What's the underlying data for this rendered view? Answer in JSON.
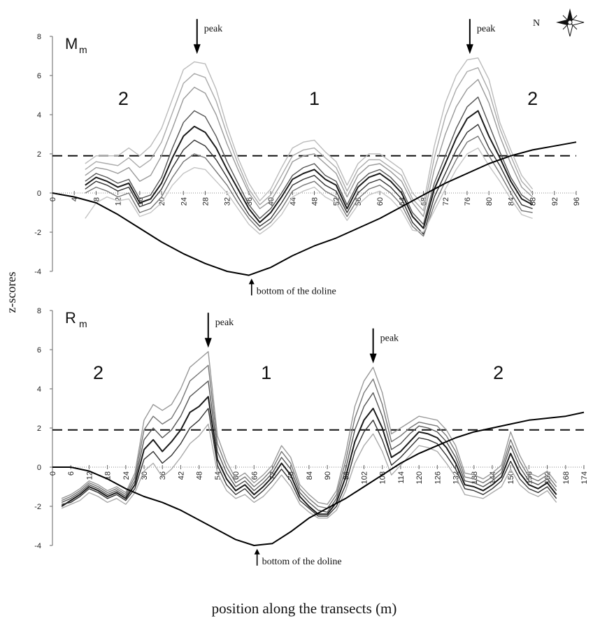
{
  "figure": {
    "ylabel": "z-scores",
    "xlabel": "position along the transects (m)",
    "compass_label": "N"
  },
  "chart_data": [
    {
      "type": "line",
      "panel_label": "M",
      "panel_label_sub": "m",
      "ylim": [
        -4,
        8
      ],
      "yticks": [
        -4,
        -2,
        0,
        2,
        4,
        6,
        8
      ],
      "xlim": [
        0,
        96
      ],
      "xticks": [
        0,
        4,
        8,
        12,
        16,
        20,
        24,
        28,
        32,
        36,
        40,
        44,
        48,
        52,
        56,
        60,
        64,
        68,
        72,
        76,
        80,
        84,
        88,
        92,
        96
      ],
      "threshold": 1.9,
      "zone_labels": [
        {
          "text": "2",
          "x": 13,
          "y": 4.5
        },
        {
          "text": "1",
          "x": 48,
          "y": 4.5
        },
        {
          "text": "2",
          "x": 88,
          "y": 4.5
        }
      ],
      "annotations": [
        {
          "text": "peak",
          "x": 26.5,
          "y": 7.1,
          "arrow": "down"
        },
        {
          "text": "peak",
          "x": 76.5,
          "y": 7.1,
          "arrow": "down"
        },
        {
          "text": "bottom of the doline",
          "x": 36.5,
          "y": -4.3,
          "arrow": "up"
        }
      ],
      "doline_profile": {
        "x": [
          0,
          4,
          8,
          12,
          16,
          20,
          24,
          28,
          32,
          36,
          40,
          44,
          48,
          52,
          56,
          60,
          64,
          68,
          72,
          76,
          80,
          84,
          88,
          92,
          96
        ],
        "y": [
          0,
          -0.2,
          -0.5,
          -1.1,
          -1.8,
          -2.5,
          -3.1,
          -3.6,
          -4.0,
          -4.2,
          -3.8,
          -3.2,
          -2.7,
          -2.3,
          -1.8,
          -1.3,
          -0.7,
          -0.1,
          0.5,
          1.0,
          1.5,
          1.9,
          2.2,
          2.4,
          2.6
        ]
      },
      "series_x": [
        6,
        8,
        10,
        12,
        14,
        16,
        18,
        20,
        22,
        24,
        26,
        28,
        30,
        32,
        34,
        36,
        38,
        40,
        42,
        44,
        46,
        48,
        50,
        52,
        54,
        56,
        58,
        60,
        62,
        64,
        66,
        68,
        70,
        72,
        74,
        76,
        78,
        80,
        82,
        84,
        86,
        88
      ],
      "series": [
        {
          "values": [
            0.4,
            0.8,
            0.6,
            0.3,
            0.5,
            -0.5,
            -0.3,
            0.5,
            1.8,
            2.9,
            3.4,
            3.1,
            2.3,
            1.2,
            0.2,
            -0.8,
            -1.5,
            -1.0,
            -0.2,
            0.7,
            1.0,
            1.2,
            0.7,
            0.4,
            -0.8,
            0.3,
            0.8,
            1.0,
            0.6,
            0.0,
            -1.2,
            -1.8,
            0.2,
            1.5,
            2.8,
            3.8,
            4.2,
            2.9,
            1.8,
            0.6,
            -0.3,
            -0.6
          ]
        },
        {
          "values": [
            0.2,
            0.6,
            0.4,
            0.1,
            0.3,
            -0.7,
            -0.5,
            0.2,
            1.3,
            2.2,
            2.7,
            2.4,
            1.7,
            0.8,
            -0.2,
            -1.1,
            -1.7,
            -1.3,
            -0.5,
            0.4,
            0.7,
            0.9,
            0.4,
            0.1,
            -1.0,
            0.0,
            0.5,
            0.7,
            0.3,
            -0.3,
            -1.5,
            -2.1,
            -0.2,
            1.0,
            2.2,
            3.1,
            3.5,
            2.3,
            1.4,
            0.3,
            -0.6,
            -0.8
          ]
        },
        {
          "values": [
            0.6,
            1.0,
            0.8,
            0.5,
            0.7,
            -0.3,
            -0.1,
            0.8,
            2.3,
            3.6,
            4.2,
            3.9,
            2.9,
            1.6,
            0.5,
            -0.6,
            -1.3,
            -0.8,
            0.0,
            0.9,
            1.3,
            1.5,
            0.9,
            0.6,
            -0.6,
            0.5,
            1.0,
            1.2,
            0.8,
            0.2,
            -1.0,
            -1.6,
            0.5,
            1.9,
            3.3,
            4.4,
            4.9,
            3.5,
            2.1,
            0.8,
            -0.1,
            -0.5
          ]
        },
        {
          "values": [
            0.0,
            0.3,
            0.1,
            -0.2,
            0.0,
            -1.0,
            -0.8,
            -0.2,
            0.8,
            1.6,
            2.0,
            1.8,
            1.1,
            0.4,
            -0.5,
            -1.3,
            -1.9,
            -1.5,
            -0.8,
            0.1,
            0.4,
            0.6,
            0.1,
            -0.2,
            -1.2,
            -0.3,
            0.2,
            0.4,
            0.0,
            -0.6,
            -1.7,
            -2.2,
            -0.6,
            0.6,
            1.7,
            2.6,
            2.9,
            1.9,
            1.0,
            0.0,
            -0.9,
            -1.0
          ]
        },
        {
          "values": [
            0.9,
            1.3,
            1.2,
            1.0,
            1.3,
            0.6,
            0.9,
            1.9,
            3.3,
            4.8,
            5.4,
            5.1,
            4.0,
            2.5,
            1.2,
            0.0,
            -0.8,
            -0.4,
            0.5,
            1.6,
            1.9,
            2.0,
            1.5,
            1.0,
            -0.2,
            0.9,
            1.4,
            1.5,
            1.1,
            0.6,
            -0.5,
            -1.2,
            1.2,
            3.0,
            4.4,
            5.3,
            5.8,
            4.6,
            2.9,
            1.5,
            0.3,
            -0.2
          ]
        },
        {
          "values": [
            1.2,
            1.6,
            1.5,
            1.4,
            1.8,
            1.3,
            1.7,
            2.6,
            4.1,
            5.6,
            6.1,
            5.9,
            4.7,
            3.0,
            1.5,
            0.2,
            -0.6,
            -0.1,
            0.9,
            1.9,
            2.2,
            2.3,
            1.8,
            1.3,
            0.1,
            1.2,
            1.7,
            1.7,
            1.3,
            0.9,
            -0.3,
            -0.9,
            1.8,
            3.9,
            5.3,
            6.2,
            6.4,
            5.2,
            3.3,
            1.9,
            0.6,
            0.0
          ]
        },
        {
          "values": [
            1.5,
            1.9,
            1.9,
            1.9,
            2.3,
            1.9,
            2.4,
            3.3,
            4.8,
            6.3,
            6.7,
            6.6,
            5.3,
            3.4,
            1.8,
            0.5,
            -0.4,
            0.2,
            1.3,
            2.3,
            2.6,
            2.7,
            2.1,
            1.6,
            0.4,
            1.5,
            2.0,
            2.0,
            1.6,
            1.2,
            0.0,
            -0.6,
            2.4,
            4.6,
            6.0,
            6.8,
            6.9,
            5.8,
            3.6,
            2.2,
            0.9,
            0.2
          ]
        },
        {
          "values": [
            -1.3,
            -0.5,
            -0.2,
            -0.4,
            -0.3,
            -1.2,
            -1.0,
            -0.5,
            0.4,
            1.0,
            1.3,
            1.2,
            0.6,
            0.0,
            -0.8,
            -1.6,
            -2.1,
            -1.7,
            -1.1,
            -0.2,
            0.1,
            0.3,
            -0.2,
            -0.5,
            -1.4,
            -0.6,
            -0.1,
            0.1,
            -0.3,
            -0.9,
            -1.9,
            -2.0,
            -0.9,
            0.2,
            1.2,
            2.0,
            2.3,
            1.4,
            0.6,
            -0.3,
            -1.1,
            -1.3
          ]
        }
      ]
    },
    {
      "type": "line",
      "panel_label": "R",
      "panel_label_sub": "m",
      "ylim": [
        -4,
        8
      ],
      "yticks": [
        -4,
        -2,
        0,
        2,
        4,
        6,
        8
      ],
      "xlim": [
        0,
        174
      ],
      "xticks": [
        0,
        6,
        12,
        18,
        24,
        30,
        36,
        42,
        48,
        54,
        60,
        66,
        72,
        78,
        84,
        90,
        96,
        102,
        108,
        114,
        120,
        126,
        132,
        138,
        144,
        150,
        156,
        162,
        168,
        174
      ],
      "threshold": 1.9,
      "zone_labels": [
        {
          "text": "2",
          "x": 15,
          "y": 4.5
        },
        {
          "text": "1",
          "x": 70,
          "y": 4.5
        },
        {
          "text": "2",
          "x": 146,
          "y": 4.5
        }
      ],
      "annotations": [
        {
          "text": "peak",
          "x": 51,
          "y": 6.1,
          "arrow": "down"
        },
        {
          "text": "peak",
          "x": 105,
          "y": 5.3,
          "arrow": "down"
        },
        {
          "text": "bottom of the doline",
          "x": 67,
          "y": -4.1,
          "arrow": "up"
        }
      ],
      "doline_profile": {
        "x": [
          0,
          6,
          12,
          18,
          24,
          30,
          36,
          42,
          48,
          54,
          60,
          66,
          72,
          78,
          84,
          90,
          96,
          102,
          108,
          114,
          120,
          126,
          132,
          138,
          144,
          150,
          156,
          162,
          168,
          174
        ],
        "y": [
          0,
          0,
          -0.2,
          -0.6,
          -1.1,
          -1.5,
          -1.8,
          -2.2,
          -2.7,
          -3.2,
          -3.7,
          -4.0,
          -3.9,
          -3.3,
          -2.6,
          -2.1,
          -1.6,
          -1.0,
          -0.4,
          0.2,
          0.7,
          1.1,
          1.5,
          1.8,
          2.0,
          2.2,
          2.4,
          2.5,
          2.6,
          2.8
        ]
      },
      "series_x": [
        3,
        6,
        9,
        12,
        15,
        18,
        21,
        24,
        27,
        30,
        33,
        36,
        39,
        42,
        45,
        48,
        51,
        54,
        57,
        60,
        63,
        66,
        69,
        72,
        75,
        78,
        81,
        84,
        87,
        90,
        93,
        96,
        99,
        102,
        105,
        108,
        111,
        114,
        117,
        120,
        123,
        126,
        129,
        132,
        135,
        138,
        141,
        144,
        147,
        150,
        153,
        156,
        159,
        162,
        165
      ],
      "series": [
        {
          "values": [
            -2.0,
            -1.7,
            -1.4,
            -1.0,
            -1.2,
            -1.5,
            -1.3,
            -1.6,
            -0.9,
            0.9,
            1.4,
            0.8,
            1.3,
            1.9,
            2.8,
            3.1,
            3.6,
            0.4,
            -0.6,
            -1.2,
            -0.9,
            -1.4,
            -1.0,
            -0.5,
            0.2,
            -0.4,
            -1.5,
            -2.0,
            -2.4,
            -2.4,
            -1.8,
            -0.5,
            1.3,
            2.4,
            3.0,
            2.0,
            0.5,
            0.8,
            1.3,
            1.8,
            1.7,
            1.5,
            1.0,
            0.2,
            -0.9,
            -1.0,
            -1.2,
            -0.9,
            -0.5,
            0.7,
            -0.3,
            -0.9,
            -1.1,
            -0.8,
            -1.4
          ]
        },
        {
          "values": [
            -1.9,
            -1.8,
            -1.5,
            -1.1,
            -1.3,
            -1.6,
            -1.4,
            -1.7,
            -1.1,
            0.4,
            0.8,
            0.2,
            0.6,
            1.2,
            2.0,
            2.4,
            3.0,
            0.1,
            -0.9,
            -1.4,
            -1.1,
            -1.6,
            -1.2,
            -0.7,
            -0.1,
            -0.7,
            -1.7,
            -2.1,
            -2.5,
            -2.5,
            -2.0,
            -0.9,
            0.8,
            1.8,
            2.4,
            1.4,
            0.1,
            0.5,
            1.0,
            1.5,
            1.4,
            1.2,
            0.6,
            -0.1,
            -1.1,
            -1.2,
            -1.4,
            -1.1,
            -0.7,
            0.3,
            -0.6,
            -1.1,
            -1.3,
            -1.0,
            -1.6
          ]
        },
        {
          "values": [
            -1.8,
            -1.6,
            -1.3,
            -0.9,
            -1.1,
            -1.4,
            -1.2,
            -1.5,
            -0.7,
            1.4,
            2.0,
            1.5,
            1.9,
            2.6,
            3.6,
            4.0,
            4.4,
            0.8,
            -0.3,
            -1.0,
            -0.7,
            -1.2,
            -0.8,
            -0.3,
            0.5,
            -0.1,
            -1.3,
            -1.8,
            -2.2,
            -2.3,
            -1.6,
            -0.1,
            1.9,
            3.1,
            3.8,
            2.6,
            0.9,
            1.2,
            1.7,
            2.1,
            2.0,
            1.8,
            1.3,
            0.5,
            -0.7,
            -0.8,
            -1.0,
            -0.7,
            -0.3,
            1.1,
            0.0,
            -0.7,
            -0.9,
            -0.6,
            -1.2
          ]
        },
        {
          "values": [
            -1.7,
            -1.5,
            -1.2,
            -0.8,
            -1.0,
            -1.3,
            -1.1,
            -1.4,
            -0.5,
            1.9,
            2.6,
            2.2,
            2.5,
            3.3,
            4.4,
            4.8,
            5.2,
            1.2,
            0.0,
            -0.8,
            -0.5,
            -1.0,
            -0.6,
            -0.1,
            0.8,
            0.2,
            -1.1,
            -1.6,
            -2.0,
            -2.1,
            -1.4,
            0.3,
            2.5,
            3.8,
            4.5,
            3.2,
            1.3,
            1.6,
            2.0,
            2.3,
            2.2,
            2.1,
            1.6,
            0.8,
            -0.5,
            -0.6,
            -0.8,
            -0.5,
            -0.1,
            1.4,
            0.3,
            -0.5,
            -0.7,
            -0.4,
            -1.0
          ]
        },
        {
          "values": [
            -1.6,
            -1.4,
            -1.1,
            -0.7,
            -0.9,
            -1.2,
            -1.0,
            -1.3,
            -0.3,
            2.4,
            3.2,
            2.9,
            3.2,
            4.0,
            5.1,
            5.5,
            5.9,
            1.6,
            0.3,
            -0.6,
            -0.3,
            -0.8,
            -0.4,
            0.1,
            1.1,
            0.5,
            -0.9,
            -1.4,
            -1.8,
            -1.9,
            -1.2,
            0.7,
            3.1,
            4.4,
            5.1,
            3.8,
            1.7,
            2.0,
            2.3,
            2.6,
            2.5,
            2.4,
            1.9,
            1.1,
            -0.3,
            -0.4,
            -0.6,
            -0.3,
            0.1,
            1.8,
            0.6,
            -0.3,
            -0.5,
            -0.2,
            -0.8
          ]
        },
        {
          "values": [
            -2.1,
            -1.9,
            -1.7,
            -1.3,
            -1.5,
            -1.8,
            -1.6,
            -1.9,
            -1.3,
            -0.2,
            0.2,
            -0.5,
            -0.1,
            0.5,
            1.2,
            1.6,
            2.2,
            -0.3,
            -1.2,
            -1.6,
            -1.4,
            -1.8,
            -1.5,
            -1.0,
            -0.4,
            -1.0,
            -1.9,
            -2.3,
            -2.6,
            -2.6,
            -2.2,
            -1.2,
            0.2,
            1.1,
            1.7,
            0.8,
            -0.4,
            0.1,
            0.6,
            1.1,
            1.0,
            0.8,
            0.2,
            -0.5,
            -1.4,
            -1.5,
            -1.6,
            -1.3,
            -1.0,
            -0.1,
            -0.9,
            -1.3,
            -1.5,
            -1.2,
            -1.8
          ]
        }
      ]
    }
  ]
}
